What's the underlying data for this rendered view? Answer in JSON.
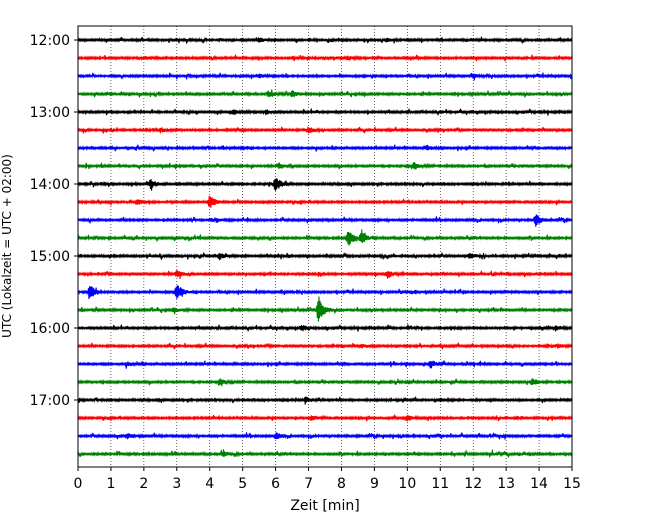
{
  "chart_data": {
    "type": "line",
    "title": "",
    "xlabel": "Zeit  [min]",
    "ylabel": "UTC (Lokalzeit = UTC + 02:00)",
    "xlim": [
      0,
      15
    ],
    "x_ticks": [
      0,
      1,
      2,
      3,
      4,
      5,
      6,
      7,
      8,
      9,
      10,
      11,
      12,
      13,
      14,
      15
    ],
    "x_tick_labels": [
      "0",
      "1",
      "2",
      "3",
      "4",
      "5",
      "6",
      "7",
      "8",
      "9",
      "10",
      "11",
      "12",
      "13",
      "14",
      "15"
    ],
    "y_tick_labels": [
      "12:00",
      "13:00",
      "14:00",
      "15:00",
      "16:00",
      "17:00"
    ],
    "grid": "vertical dotted",
    "trace_colors": [
      "#000000",
      "#ff0000",
      "#0000ff",
      "#008000"
    ],
    "traces": [
      {
        "start": "12:00",
        "events": [
          {
            "t": 5.5,
            "amp": 0.25
          },
          {
            "t": 9.4,
            "amp": 0.2
          }
        ]
      },
      {
        "start": "12:15",
        "events": [
          {
            "t": 2.0,
            "amp": 0.2
          },
          {
            "t": 8.2,
            "amp": 0.2
          }
        ]
      },
      {
        "start": "12:30",
        "events": [
          {
            "t": 5.5,
            "amp": 0.2
          },
          {
            "t": 12.0,
            "amp": 0.2
          }
        ]
      },
      {
        "start": "12:45",
        "events": [
          {
            "t": 5.8,
            "amp": 0.3
          },
          {
            "t": 6.5,
            "amp": 0.35
          }
        ]
      },
      {
        "start": "13:00",
        "events": [
          {
            "t": 4.7,
            "amp": 0.3
          },
          {
            "t": 5.7,
            "amp": 0.25
          }
        ]
      },
      {
        "start": "13:15",
        "events": [
          {
            "t": 2.5,
            "amp": 0.25
          },
          {
            "t": 7.0,
            "amp": 0.3
          }
        ]
      },
      {
        "start": "13:30",
        "events": [
          {
            "t": 4.4,
            "amp": 0.2
          },
          {
            "t": 10.6,
            "amp": 0.25
          }
        ]
      },
      {
        "start": "13:45",
        "events": [
          {
            "t": 6.1,
            "amp": 0.3
          },
          {
            "t": 10.2,
            "amp": 0.35
          }
        ]
      },
      {
        "start": "14:00",
        "events": [
          {
            "t": 2.2,
            "amp": 0.45
          },
          {
            "t": 6.0,
            "amp": 0.8
          }
        ]
      },
      {
        "start": "14:15",
        "events": [
          {
            "t": 1.8,
            "amp": 0.3
          },
          {
            "t": 4.0,
            "amp": 0.7
          }
        ]
      },
      {
        "start": "14:30",
        "events": [
          {
            "t": 4.2,
            "amp": 0.2
          },
          {
            "t": 13.9,
            "amp": 0.6
          }
        ]
      },
      {
        "start": "14:45",
        "events": [
          {
            "t": 8.2,
            "amp": 0.9
          },
          {
            "t": 8.6,
            "amp": 0.6
          }
        ]
      },
      {
        "start": "15:00",
        "events": [
          {
            "t": 4.3,
            "amp": 0.3
          },
          {
            "t": 11.9,
            "amp": 0.35
          }
        ]
      },
      {
        "start": "15:15",
        "events": [
          {
            "t": 3.0,
            "amp": 0.35
          },
          {
            "t": 9.4,
            "amp": 0.4
          }
        ]
      },
      {
        "start": "15:30",
        "events": [
          {
            "t": 0.35,
            "amp": 0.8
          },
          {
            "t": 3.0,
            "amp": 0.85
          }
        ]
      },
      {
        "start": "15:45",
        "events": [
          {
            "t": 7.3,
            "amp": 1.3
          },
          {
            "t": 2.9,
            "amp": 0.25
          }
        ]
      },
      {
        "start": "16:00",
        "events": [
          {
            "t": 6.8,
            "amp": 0.3
          },
          {
            "t": 14.5,
            "amp": 0.25
          }
        ]
      },
      {
        "start": "16:15",
        "events": [
          {
            "t": 8.6,
            "amp": 0.2
          },
          {
            "t": 14.6,
            "amp": 0.25
          }
        ]
      },
      {
        "start": "16:30",
        "events": [
          {
            "t": 10.7,
            "amp": 0.45
          },
          {
            "t": 1.5,
            "amp": 0.2
          }
        ]
      },
      {
        "start": "16:45",
        "events": [
          {
            "t": 13.8,
            "amp": 0.35
          },
          {
            "t": 4.3,
            "amp": 0.3
          }
        ]
      },
      {
        "start": "17:00",
        "events": [
          {
            "t": 6.9,
            "amp": 0.35
          },
          {
            "t": 11.0,
            "amp": 0.2
          }
        ]
      },
      {
        "start": "17:15",
        "events": [
          {
            "t": 10.0,
            "amp": 0.3
          },
          {
            "t": 7.1,
            "amp": 0.25
          }
        ]
      },
      {
        "start": "17:30",
        "events": [
          {
            "t": 6.0,
            "amp": 0.35
          },
          {
            "t": 1.5,
            "amp": 0.25
          }
        ]
      },
      {
        "start": "17:45",
        "events": [
          {
            "t": 4.4,
            "amp": 0.3
          },
          {
            "t": 12.5,
            "amp": 0.2
          }
        ]
      }
    ]
  }
}
